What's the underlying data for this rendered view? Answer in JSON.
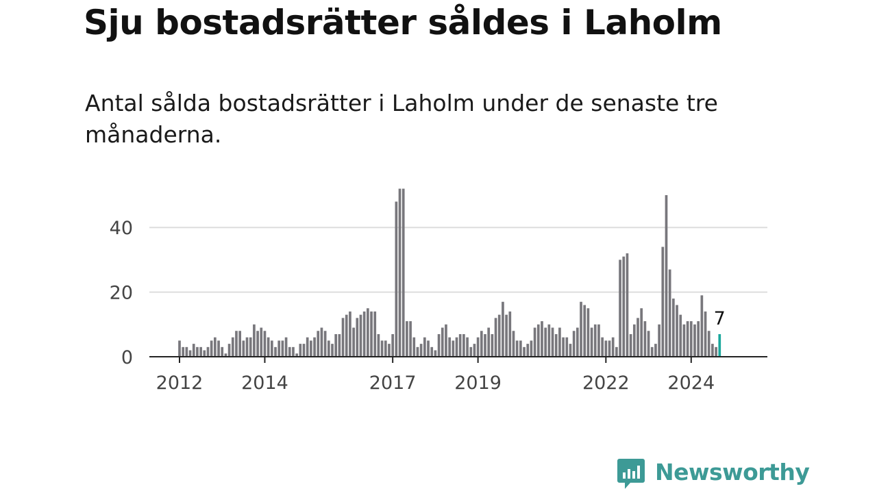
{
  "title": "Sju bostadsrätter såldes i Laholm",
  "subtitle": "Antal sålda bostadsrätter i Laholm under de senaste tre månaderna.",
  "brand": {
    "name": "Newsworthy",
    "color": "#3d9a96"
  },
  "colors": {
    "bar": "#78777c",
    "highlight": "#1aa79c",
    "grid": "#dddddd",
    "axis": "#222222"
  },
  "chart_data": {
    "type": "bar",
    "x_start": "2012-01",
    "frequency": "monthly",
    "ylim": [
      0,
      50
    ],
    "yticks": [
      0,
      20,
      40
    ],
    "xtick_labels": [
      "2012",
      "2014",
      "2017",
      "2019",
      "2022",
      "2024"
    ],
    "grid": "horizontal",
    "values": [
      5,
      3,
      3,
      2,
      4,
      3,
      3,
      2,
      3,
      5,
      6,
      5,
      3,
      1,
      4,
      6,
      8,
      8,
      5,
      6,
      6,
      10,
      8,
      9,
      8,
      6,
      5,
      3,
      5,
      5,
      6,
      3,
      3,
      1,
      4,
      4,
      6,
      5,
      6,
      8,
      9,
      8,
      5,
      4,
      7,
      7,
      12,
      13,
      14,
      9,
      12,
      13,
      14,
      15,
      14,
      14,
      7,
      5,
      5,
      4,
      7,
      48,
      52,
      52,
      11,
      11,
      6,
      3,
      4,
      6,
      5,
      3,
      2,
      7,
      9,
      10,
      6,
      5,
      6,
      7,
      7,
      6,
      3,
      4,
      6,
      8,
      7,
      9,
      7,
      12,
      13,
      17,
      13,
      14,
      8,
      5,
      5,
      3,
      4,
      5,
      9,
      10,
      11,
      9,
      10,
      9,
      7,
      9,
      6,
      6,
      4,
      8,
      9,
      17,
      16,
      15,
      9,
      10,
      10,
      6,
      5,
      5,
      6,
      3,
      30,
      31,
      32,
      7,
      10,
      12,
      15,
      11,
      8,
      3,
      4,
      10,
      34,
      50,
      27,
      18,
      16,
      13,
      10,
      11,
      11,
      10,
      11,
      19,
      14,
      8,
      4,
      3,
      7
    ],
    "highlight_label": "7"
  }
}
